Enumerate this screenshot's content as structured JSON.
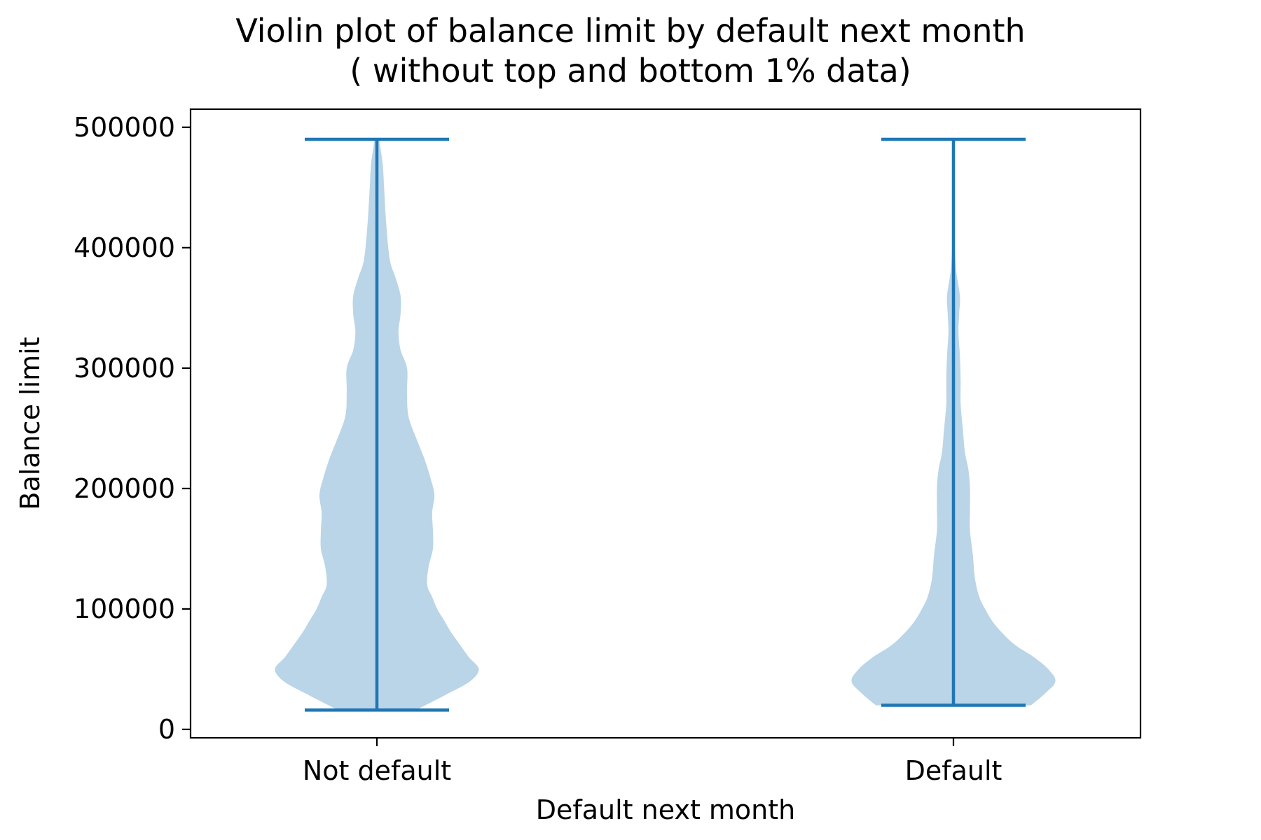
{
  "colors": {
    "body": "#bad5e8",
    "lines": "#1f77b4",
    "axes": "#000000",
    "background": "#ffffff"
  },
  "chart_data": {
    "type": "violin",
    "title": [
      "Violin plot of balance limit by default next month",
      "( without top and bottom 1% data)"
    ],
    "xlabel": "Default next month",
    "ylabel": "Balance limit",
    "ylim": [
      -7000,
      515000
    ],
    "yticks": [
      0,
      100000,
      200000,
      300000,
      400000,
      500000
    ],
    "ytick_labels": [
      "0",
      "100000",
      "200000",
      "300000",
      "400000",
      "500000"
    ],
    "categories": [
      "Not default",
      "Default"
    ],
    "grid": false,
    "series": [
      {
        "category": "Not default",
        "min": 16000,
        "max": 490000,
        "density_profile": [
          [
            16000,
            0.27
          ],
          [
            22000,
            0.37
          ],
          [
            30000,
            0.5
          ],
          [
            40000,
            0.65
          ],
          [
            50000,
            0.71
          ],
          [
            60000,
            0.64
          ],
          [
            70000,
            0.58
          ],
          [
            80000,
            0.52
          ],
          [
            90000,
            0.47
          ],
          [
            100000,
            0.42
          ],
          [
            110000,
            0.385
          ],
          [
            120000,
            0.35
          ],
          [
            135000,
            0.36
          ],
          [
            150000,
            0.39
          ],
          [
            165000,
            0.39
          ],
          [
            180000,
            0.385
          ],
          [
            195000,
            0.4
          ],
          [
            210000,
            0.37
          ],
          [
            225000,
            0.33
          ],
          [
            240000,
            0.28
          ],
          [
            260000,
            0.22
          ],
          [
            280000,
            0.21
          ],
          [
            300000,
            0.21
          ],
          [
            315000,
            0.165
          ],
          [
            330000,
            0.15
          ],
          [
            345000,
            0.165
          ],
          [
            360000,
            0.165
          ],
          [
            375000,
            0.13
          ],
          [
            390000,
            0.09
          ],
          [
            420000,
            0.065
          ],
          [
            450000,
            0.05
          ],
          [
            470000,
            0.04
          ],
          [
            490000,
            0.015
          ]
        ]
      },
      {
        "category": "Default",
        "min": 20000,
        "max": 490000,
        "density_profile": [
          [
            20000,
            0.54
          ],
          [
            30000,
            0.64
          ],
          [
            40000,
            0.71
          ],
          [
            50000,
            0.66
          ],
          [
            60000,
            0.56
          ],
          [
            70000,
            0.43
          ],
          [
            80000,
            0.34
          ],
          [
            90000,
            0.27
          ],
          [
            100000,
            0.22
          ],
          [
            110000,
            0.18
          ],
          [
            125000,
            0.15
          ],
          [
            145000,
            0.135
          ],
          [
            165000,
            0.115
          ],
          [
            185000,
            0.115
          ],
          [
            200000,
            0.115
          ],
          [
            215000,
            0.105
          ],
          [
            230000,
            0.08
          ],
          [
            250000,
            0.065
          ],
          [
            270000,
            0.05
          ],
          [
            290000,
            0.05
          ],
          [
            310000,
            0.045
          ],
          [
            330000,
            0.035
          ],
          [
            345000,
            0.04
          ],
          [
            360000,
            0.045
          ],
          [
            380000,
            0.02
          ],
          [
            400000,
            0.01
          ],
          [
            440000,
            0.004
          ],
          [
            490000,
            0.002
          ]
        ]
      }
    ]
  }
}
